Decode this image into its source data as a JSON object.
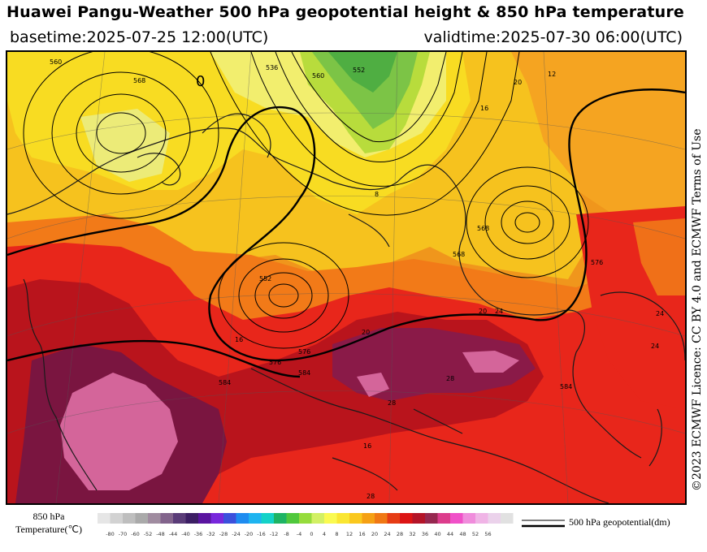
{
  "header": {
    "title": "Huawei Pangu-Weather 500 hPa geopotential height & 850 hPa temperature",
    "basetime": "basetime:2025-07-25 12:00(UTC)",
    "validtime": "validtime:2025-07-30 06:00(UTC)"
  },
  "license": "©2023 ECMWF Licence: CC BY 4.0 and ECMWF Terms of Use",
  "map": {
    "contour_labels": [
      "568",
      "552",
      "536",
      "560",
      "576",
      "584",
      "576",
      "568",
      "568",
      "584",
      "552",
      "560",
      "576",
      "584"
    ],
    "temperature_labels": [
      "20",
      "24",
      "28",
      "16",
      "20",
      "24",
      "28",
      "16",
      "20",
      "8",
      "16",
      "12",
      "24",
      "28"
    ],
    "low_marker": "0",
    "fill_colors": {
      "ocean_orange": "#f29a1c",
      "yellow": "#f8dc1e",
      "light_yellow": "#f6ee72",
      "green": "#7bc34a",
      "red": "#e8261b",
      "dark_red": "#b4141c",
      "maroon": "#7a1540",
      "pink": "#d4659a"
    }
  },
  "colorbar": {
    "title_line1": "850 hPa",
    "title_line2": "Temperature(℃)",
    "ticks": [
      "-80",
      "-70",
      "-60",
      "-52",
      "-48",
      "-44",
      "-40",
      "-36",
      "-32",
      "-28",
      "-24",
      "-20",
      "-16",
      "-12",
      "-8",
      "-4",
      "0",
      "4",
      "8",
      "12",
      "16",
      "20",
      "24",
      "28",
      "32",
      "36",
      "40",
      "44",
      "48",
      "52",
      "56"
    ],
    "colors": [
      "#e6e6e6",
      "#d2d2d2",
      "#bebebe",
      "#aaaaaa",
      "#a08ca0",
      "#82648c",
      "#5a3c78",
      "#3c1e64",
      "#5a14a0",
      "#7828dc",
      "#3c50dc",
      "#1e8cf0",
      "#1eb4f0",
      "#14d2c8",
      "#1eb464",
      "#50c83c",
      "#96dc3c",
      "#d2f064",
      "#fafa50",
      "#fae632",
      "#fac81e",
      "#f5a014",
      "#f07814",
      "#e63c14",
      "#dc1414",
      "#b41428",
      "#962850",
      "#dc3c8c",
      "#f050c8",
      "#f08cdc",
      "#f0b4e6",
      "#ebd2eb",
      "#e1e1e1"
    ]
  },
  "legend": {
    "label": "500 hPa geopotential(dm)"
  }
}
